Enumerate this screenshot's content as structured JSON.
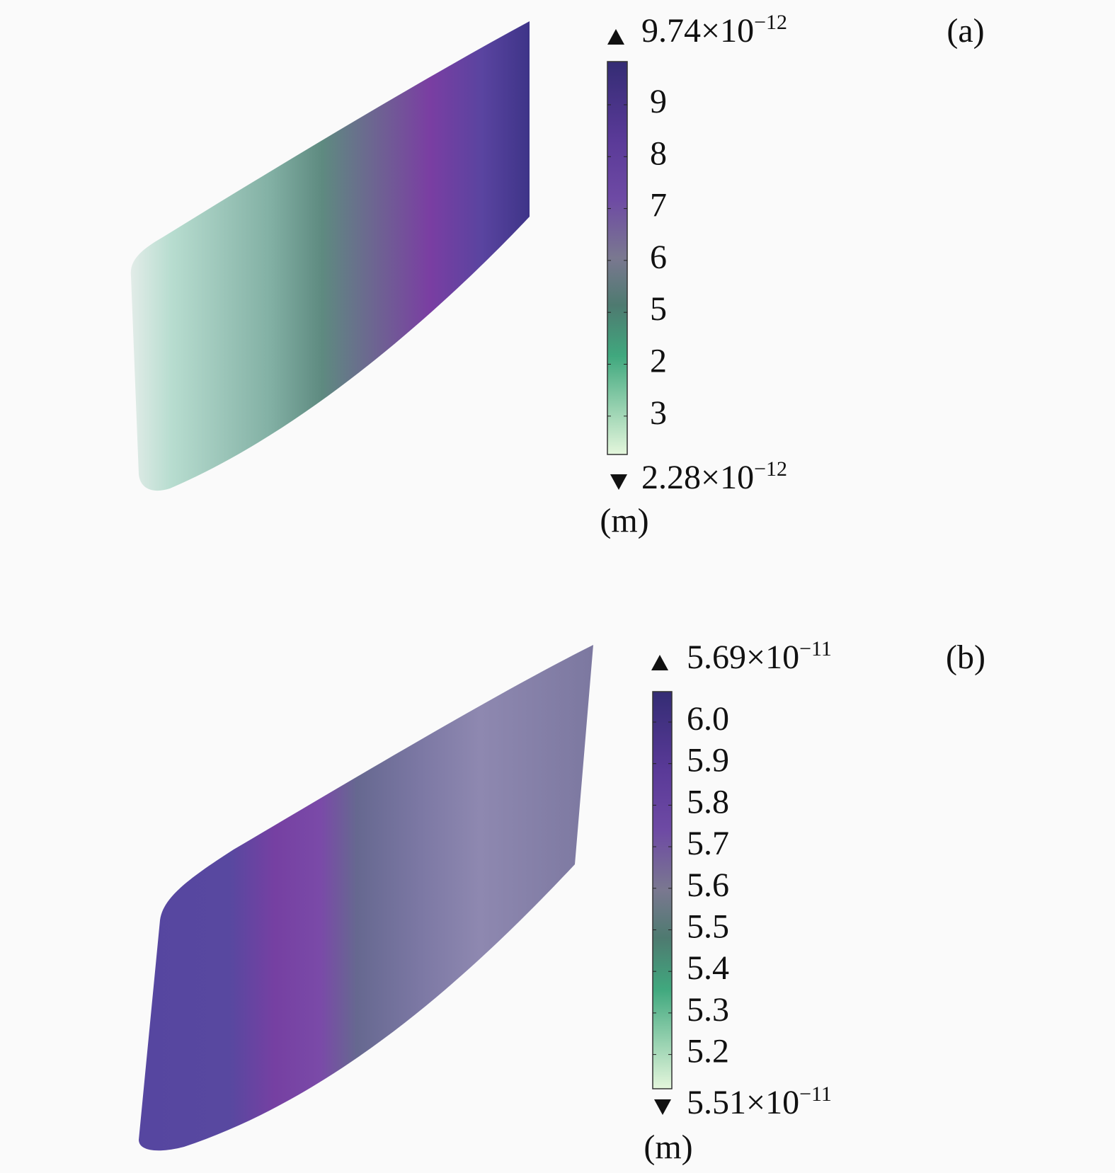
{
  "panels": [
    {
      "label": "(a)",
      "max": {
        "mantissa": "9.74×10",
        "exponent": "−12"
      },
      "min": {
        "mantissa": "2.28×10",
        "exponent": "−12"
      },
      "unit": "(m)",
      "ticks": [
        "9",
        "8",
        "7",
        "6",
        "5",
        "2",
        "3"
      ]
    },
    {
      "label": "(b)",
      "max": {
        "mantissa": "5.69×10",
        "exponent": "−11"
      },
      "min": {
        "mantissa": "5.51×10",
        "exponent": "−11"
      },
      "unit": "(m)",
      "ticks": [
        "6.0",
        "5.9",
        "5.8",
        "5.7",
        "5.6",
        "5.5",
        "5.4",
        "5.3",
        "5.2"
      ]
    }
  ]
}
